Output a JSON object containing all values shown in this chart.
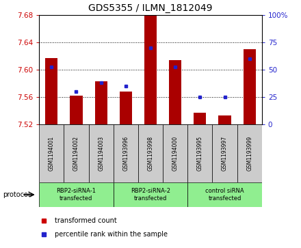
{
  "title": "GDS5355 / ILMN_1812049",
  "samples": [
    "GSM1194001",
    "GSM1194002",
    "GSM1194003",
    "GSM1193996",
    "GSM1193998",
    "GSM1194000",
    "GSM1193995",
    "GSM1193997",
    "GSM1193999"
  ],
  "red_values": [
    7.617,
    7.562,
    7.583,
    7.568,
    7.679,
    7.614,
    7.537,
    7.533,
    7.63
  ],
  "blue_values": [
    52,
    30,
    38,
    35,
    70,
    52,
    25,
    25,
    60
  ],
  "ymin": 7.52,
  "ymax": 7.68,
  "y2min": 0,
  "y2max": 100,
  "yticks": [
    7.52,
    7.56,
    7.6,
    7.64,
    7.68
  ],
  "y2ticks": [
    0,
    25,
    50,
    75,
    100
  ],
  "bar_color": "#aa0000",
  "dot_color": "#2222cc",
  "bar_width": 0.5,
  "protocols": [
    {
      "label": "RBP2-siRNA-1\ntransfected",
      "start": 0,
      "end": 3,
      "color": "#90ee90"
    },
    {
      "label": "RBP2-siRNA-2\ntransfected",
      "start": 3,
      "end": 6,
      "color": "#90ee90"
    },
    {
      "label": "control siRNA\ntransfected",
      "start": 6,
      "end": 9,
      "color": "#90ee90"
    }
  ],
  "legend_items": [
    {
      "label": "transformed count",
      "color": "#cc0000"
    },
    {
      "label": "percentile rank within the sample",
      "color": "#2222cc"
    }
  ],
  "protocol_label": "protocol",
  "ylabel_color_left": "#cc0000",
  "ylabel_color_right": "#2222cc",
  "sample_box_color": "#cccccc",
  "title_fontsize": 10
}
